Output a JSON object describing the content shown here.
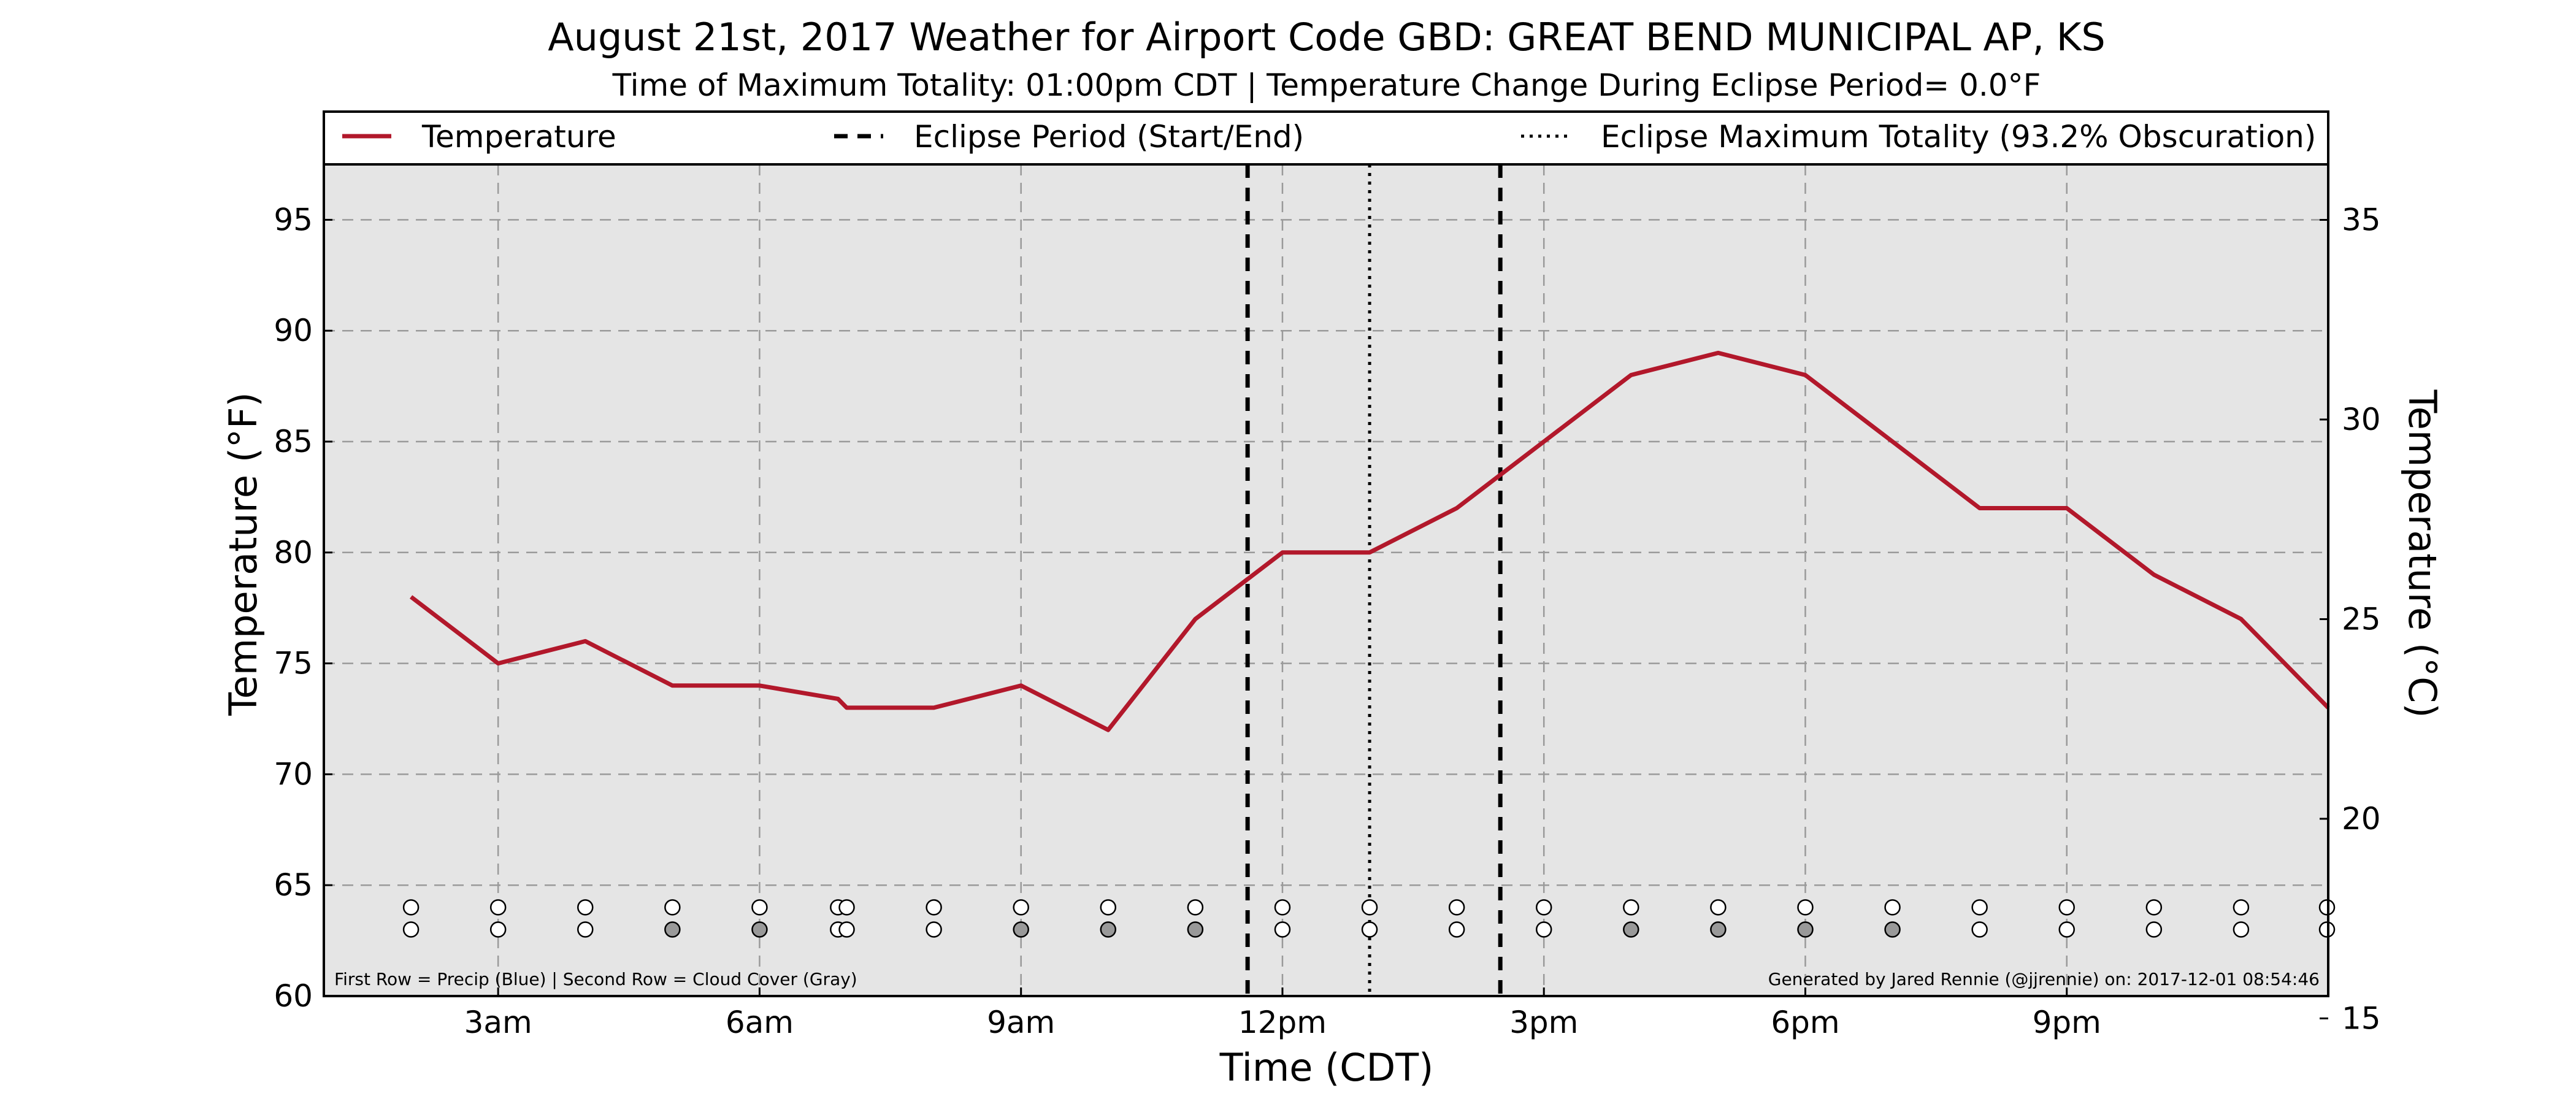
{
  "chart_data": {
    "type": "line",
    "title": "August 21st, 2017 Weather for Airport Code GBD: GREAT BEND MUNICIPAL AP, KS",
    "subtitle": "Time of Maximum Totality: 01:00pm CDT | Temperature Change During Eclipse Period= 0.0°F",
    "xlabel": "Time (CDT)",
    "ylabel": "Temperature (°F)",
    "ylabel_right": "Temperature (°C)",
    "xlim": [
      1.0,
      24.0
    ],
    "ylim": [
      60,
      97.5
    ],
    "ylim_right_c": [
      15.56,
      36.39
    ],
    "x_ticks": [
      {
        "x": 3,
        "label": "3am"
      },
      {
        "x": 6,
        "label": "6am"
      },
      {
        "x": 9,
        "label": "9am"
      },
      {
        "x": 12,
        "label": "12pm"
      },
      {
        "x": 15,
        "label": "3pm"
      },
      {
        "x": 18,
        "label": "6pm"
      },
      {
        "x": 21,
        "label": "9pm"
      }
    ],
    "y_ticks": [
      60,
      65,
      70,
      75,
      80,
      85,
      90,
      95
    ],
    "y_ticks_right": [
      15,
      20,
      25,
      30,
      35
    ],
    "grid": true,
    "legend_position": "top",
    "legend": [
      {
        "label": "Temperature",
        "style": "solid",
        "color": "#b2182b"
      },
      {
        "label": "Eclipse Period (Start/End)",
        "style": "dashed",
        "color": "#000000"
      },
      {
        "label": "Eclipse Maximum Totality (93.2% Obscuration)",
        "style": "dotted",
        "color": "#000000"
      }
    ],
    "series": [
      {
        "name": "Temperature",
        "color": "#b2182b",
        "x": [
          2.0,
          3.0,
          4.0,
          5.0,
          6.0,
          6.9,
          7.0,
          8.0,
          9.0,
          10.0,
          11.0,
          12.0,
          13.0,
          14.0,
          15.0,
          16.0,
          17.0,
          18.0,
          19.0,
          20.0,
          21.0,
          22.0,
          23.0,
          24.0
        ],
        "y": [
          78,
          75,
          76,
          74,
          74,
          73.4,
          73,
          73,
          74,
          72,
          77,
          80,
          80,
          82,
          85,
          88,
          89,
          88,
          85,
          82,
          82,
          79,
          77,
          73
        ]
      }
    ],
    "eclipse_start": 11.6,
    "eclipse_end": 14.5,
    "eclipse_max": 13.0,
    "marker_rows": {
      "x": [
        2,
        3,
        4,
        5,
        6,
        6.9,
        7.0,
        8,
        9,
        10,
        11,
        12,
        13,
        14,
        15,
        16,
        17,
        18,
        19,
        20,
        21,
        22,
        23,
        24
      ],
      "precip_y": 64,
      "cloud_y": 63,
      "precip_fill": [
        "#ffffff",
        "#ffffff",
        "#ffffff",
        "#ffffff",
        "#ffffff",
        "#ffffff",
        "#ffffff",
        "#ffffff",
        "#ffffff",
        "#ffffff",
        "#ffffff",
        "#ffffff",
        "#ffffff",
        "#ffffff",
        "#ffffff",
        "#ffffff",
        "#ffffff",
        "#ffffff",
        "#ffffff",
        "#ffffff",
        "#ffffff",
        "#ffffff",
        "#ffffff",
        "#ffffff"
      ],
      "cloud_fill": [
        "#ffffff",
        "#ffffff",
        "#ffffff",
        "#999999",
        "#999999",
        "#ffffff",
        "#ffffff",
        "#ffffff",
        "#999999",
        "#999999",
        "#999999",
        "#ffffff",
        "#ffffff",
        "#ffffff",
        "#ffffff",
        "#999999",
        "#999999",
        "#999999",
        "#999999",
        "#ffffff",
        "#ffffff",
        "#ffffff",
        "#ffffff",
        "#ffffff"
      ]
    },
    "notes": {
      "left": "First Row = Precip (Blue) | Second Row = Cloud Cover (Gray)",
      "right": "Generated by Jared Rennie (@jjrennie) on: 2017-12-01 08:54:46"
    }
  }
}
